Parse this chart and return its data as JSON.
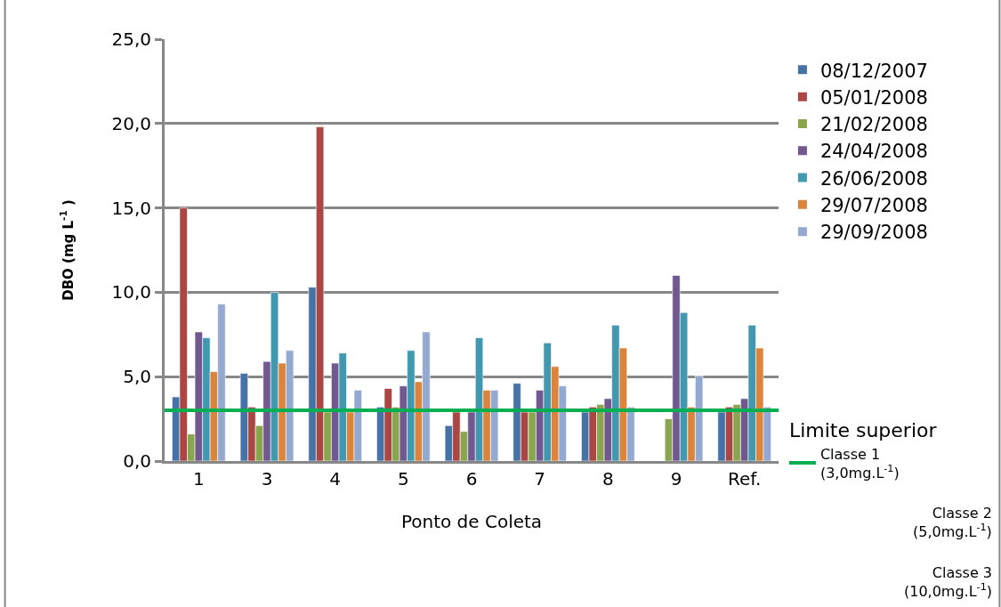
{
  "chart_data": {
    "type": "bar",
    "xlabel": "Ponto de Coleta",
    "ylabel": "DBO (mg L$^{-1}$ )",
    "categories": [
      "1",
      "3",
      "4",
      "5",
      "6",
      "7",
      "8",
      "9",
      "Ref."
    ],
    "series": [
      {
        "name": "08/12/2007",
        "color": "#4572a7",
        "values": [
          3.8,
          5.2,
          10.3,
          3.2,
          2.1,
          4.6,
          2.9,
          null,
          2.9
        ]
      },
      {
        "name": "05/01/2008",
        "color": "#aa4643",
        "values": [
          15.0,
          3.2,
          19.8,
          4.3,
          2.9,
          2.9,
          3.2,
          null,
          3.2
        ]
      },
      {
        "name": "21/02/2008",
        "color": "#89a54e",
        "values": [
          1.6,
          2.1,
          2.9,
          3.2,
          1.75,
          2.9,
          3.35,
          2.5,
          3.35
        ]
      },
      {
        "name": "24/04/2008",
        "color": "#71588f",
        "values": [
          7.65,
          5.9,
          5.8,
          4.45,
          2.9,
          4.2,
          3.7,
          11.0,
          3.7
        ]
      },
      {
        "name": "26/06/2008",
        "color": "#4198af",
        "values": [
          7.3,
          10.0,
          6.4,
          6.55,
          7.3,
          7.0,
          8.05,
          8.8,
          8.05
        ]
      },
      {
        "name": "29/07/2008",
        "color": "#db843d",
        "values": [
          5.3,
          5.8,
          2.9,
          4.7,
          4.2,
          5.6,
          6.7,
          3.2,
          6.7
        ]
      },
      {
        "name": "29/09/2008",
        "color": "#93a9cf",
        "values": [
          9.3,
          6.55,
          4.2,
          7.65,
          4.2,
          4.45,
          3.2,
          5.05,
          3.2
        ]
      }
    ],
    "ylim": [
      0,
      25
    ],
    "yticks": [
      {
        "value": 0,
        "label": "0,0"
      },
      {
        "value": 5,
        "label": "5,0"
      },
      {
        "value": 10,
        "label": "10,0"
      },
      {
        "value": 15,
        "label": "15,0"
      },
      {
        "value": 20,
        "label": "20,0"
      },
      {
        "value": 25,
        "label": "25,0"
      }
    ],
    "grid": "y",
    "legend": "right",
    "ref_lines": [
      {
        "axis": "y",
        "value": 3.0,
        "label": "Classe 1 (3,0mg.L$^{-1}$)",
        "color": "#00b050"
      }
    ],
    "annotations": [
      "Limite superior",
      "Classe 2 (5,0mg.L$^{-1}$)",
      "Classe 3 (10,0mg.L$^{-1}$)"
    ]
  }
}
